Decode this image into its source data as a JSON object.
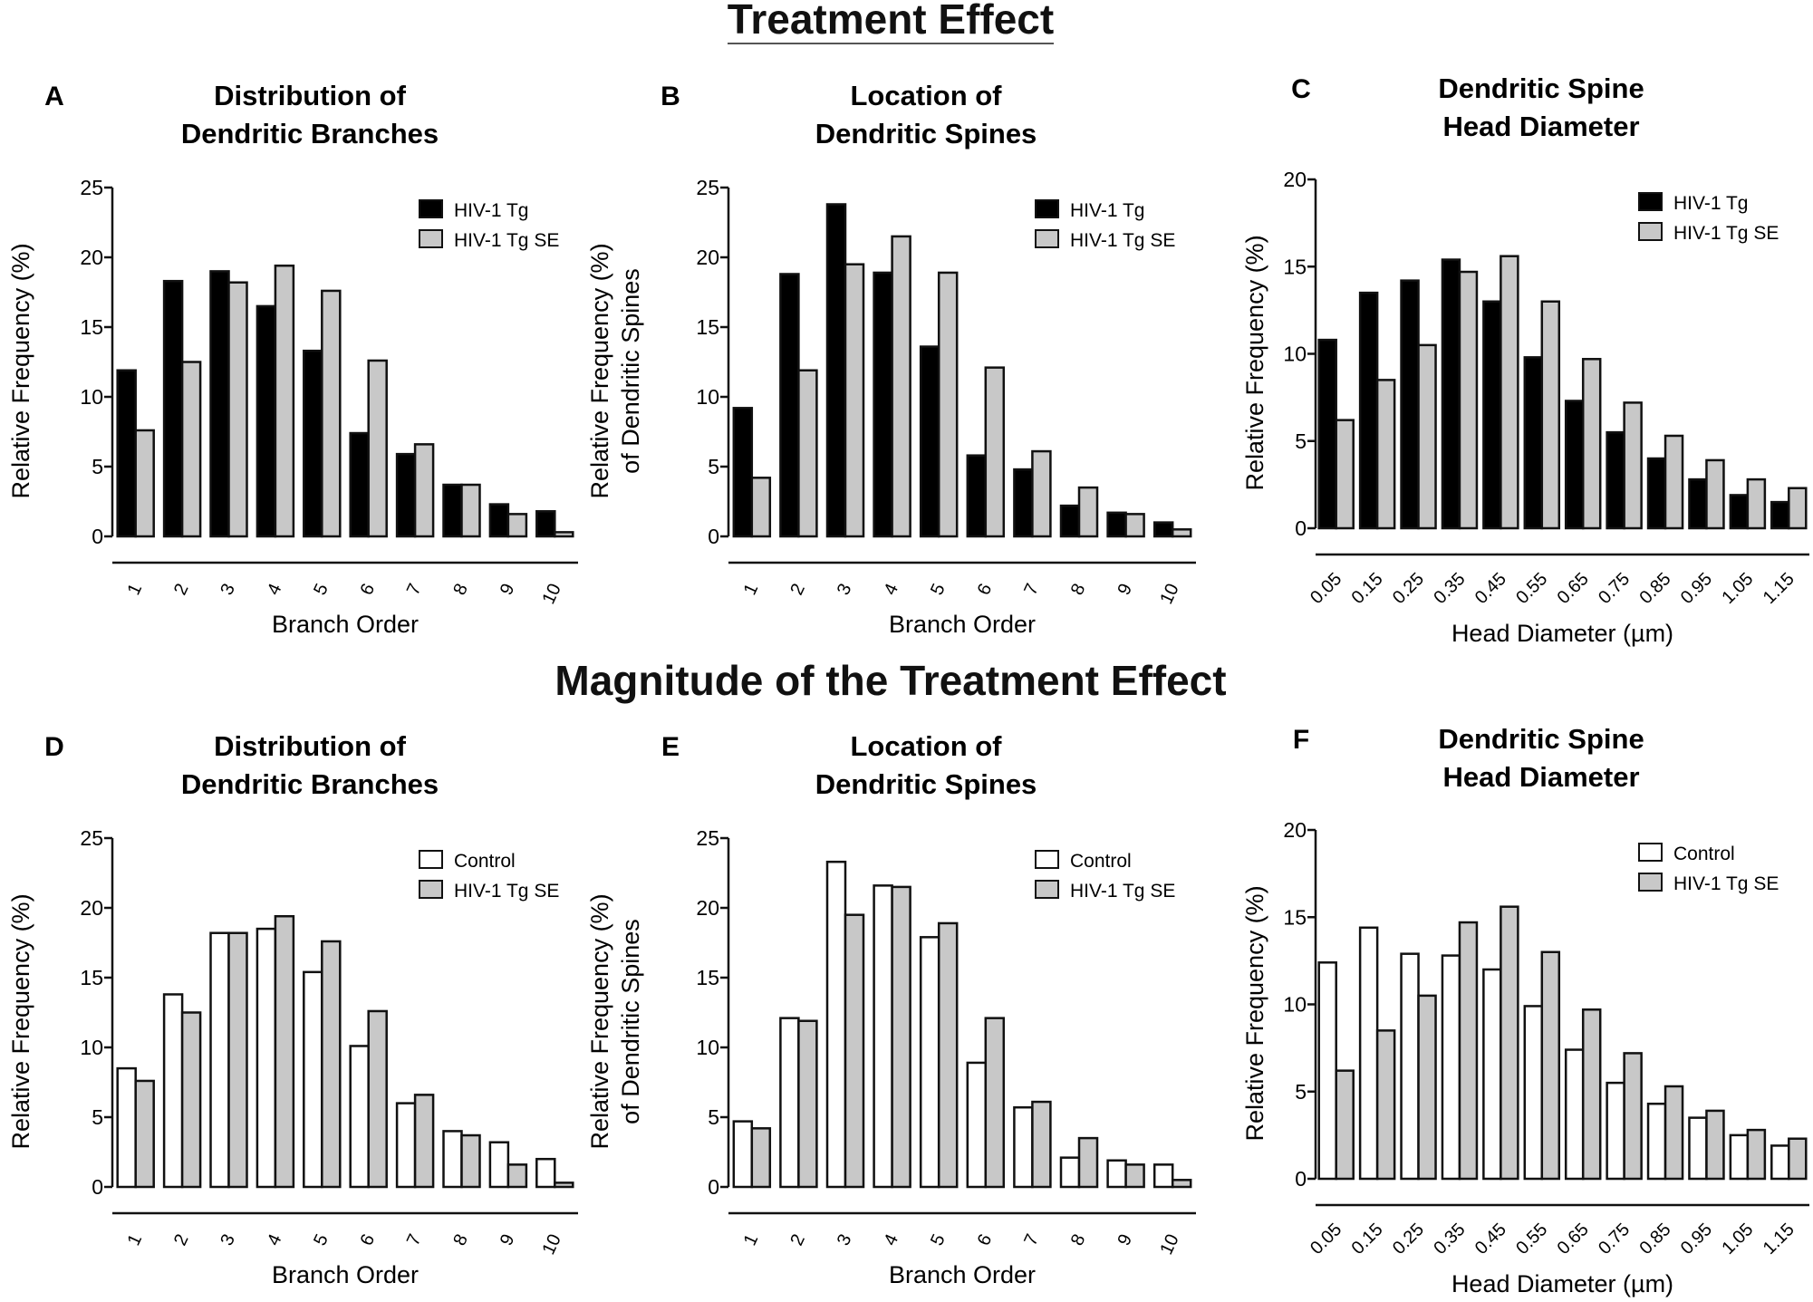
{
  "headings": {
    "top": "Treatment Effect",
    "bottom": "Magnitude of the  Treatment Effect"
  },
  "colors": {
    "black_bar": "#000000",
    "gray_bar": "#c8c8c8",
    "white_bar": "#ffffff",
    "outline": "#111111"
  },
  "chart_data": [
    {
      "panel": "A",
      "type": "bar",
      "title": [
        "Distribution of",
        "Dendritic  Branches"
      ],
      "xlabel": "Branch  Order",
      "ylabel": [
        "Relative  Frequency (%)"
      ],
      "categories": [
        "1",
        "2",
        "3",
        "4",
        "5",
        "6",
        "7",
        "8",
        "9",
        "10"
      ],
      "ylim": [
        0,
        25
      ],
      "yticks": [
        "0",
        "5",
        "10",
        "15",
        "20",
        "25"
      ],
      "legend": "top-right",
      "series": [
        {
          "name": "HIV-1 Tg",
          "fill": "black",
          "values": [
            11.9,
            18.3,
            19.0,
            16.5,
            13.3,
            7.4,
            5.9,
            3.7,
            2.3,
            1.8
          ]
        },
        {
          "name": "HIV-1 Tg SE",
          "fill": "gray",
          "values": [
            7.6,
            12.5,
            18.2,
            19.4,
            17.6,
            12.6,
            6.6,
            3.7,
            1.6,
            0.3
          ]
        }
      ]
    },
    {
      "panel": "B",
      "type": "bar",
      "title": [
        "Location of",
        "Dendritic Spines"
      ],
      "xlabel": "Branch  Order",
      "ylabel": [
        "Relative  Frequency (%)",
        "of Dendritic  Spines"
      ],
      "categories": [
        "1",
        "2",
        "3",
        "4",
        "5",
        "6",
        "7",
        "8",
        "9",
        "10"
      ],
      "ylim": [
        0,
        25
      ],
      "yticks": [
        "0",
        "5",
        "10",
        "15",
        "20",
        "25"
      ],
      "legend": "top-right",
      "series": [
        {
          "name": "HIV-1 Tg",
          "fill": "black",
          "values": [
            9.2,
            18.8,
            23.8,
            18.9,
            13.6,
            5.8,
            4.8,
            2.2,
            1.7,
            1.0
          ]
        },
        {
          "name": "HIV-1 Tg SE",
          "fill": "gray",
          "values": [
            4.2,
            11.9,
            19.5,
            21.5,
            18.9,
            12.1,
            6.1,
            3.5,
            1.6,
            0.5
          ]
        }
      ]
    },
    {
      "panel": "C",
      "type": "bar",
      "title": [
        "Dendritic Spine",
        "Head  Diameter"
      ],
      "xlabel": "Head Diameter (µm)",
      "ylabel": [
        "Relative  Frequency (%)"
      ],
      "categories": [
        "0.05",
        "0.15",
        "0.25",
        "0.35",
        "0.45",
        "0.55",
        "0.65",
        "0.75",
        "0.85",
        "0.95",
        "1.05",
        "1.15"
      ],
      "ylim": [
        0,
        20
      ],
      "yticks": [
        "0",
        "5",
        "10",
        "15",
        "20"
      ],
      "legend": "top-right",
      "series": [
        {
          "name": "HIV-1 Tg",
          "fill": "black",
          "values": [
            10.8,
            13.5,
            14.2,
            15.4,
            13.0,
            9.8,
            7.3,
            5.5,
            4.0,
            2.8,
            1.9,
            1.5
          ]
        },
        {
          "name": "HIV-1 Tg SE",
          "fill": "gray",
          "values": [
            6.2,
            8.5,
            10.5,
            14.7,
            15.6,
            13.0,
            9.7,
            7.2,
            5.3,
            3.9,
            2.8,
            2.3
          ]
        }
      ]
    },
    {
      "panel": "D",
      "type": "bar",
      "title": [
        "Distribution of",
        "Dendritic  Branches"
      ],
      "xlabel": "Branch  Order",
      "ylabel": [
        "Relative  Frequency (%)"
      ],
      "categories": [
        "1",
        "2",
        "3",
        "4",
        "5",
        "6",
        "7",
        "8",
        "9",
        "10"
      ],
      "ylim": [
        0,
        25
      ],
      "yticks": [
        "0",
        "5",
        "10",
        "15",
        "20",
        "25"
      ],
      "legend": "top-right",
      "series": [
        {
          "name": "Control",
          "fill": "white",
          "values": [
            8.5,
            13.8,
            18.2,
            18.5,
            15.4,
            10.1,
            6.0,
            4.0,
            3.2,
            2.0
          ]
        },
        {
          "name": "HIV-1 Tg SE",
          "fill": "gray",
          "values": [
            7.6,
            12.5,
            18.2,
            19.4,
            17.6,
            12.6,
            6.6,
            3.7,
            1.6,
            0.3
          ]
        }
      ]
    },
    {
      "panel": "E",
      "type": "bar",
      "title": [
        "Location of",
        "Dendritic Spines"
      ],
      "xlabel": "Branch  Order",
      "ylabel": [
        "Relative  Frequency (%)",
        "of Dendritic  Spines"
      ],
      "categories": [
        "1",
        "2",
        "3",
        "4",
        "5",
        "6",
        "7",
        "8",
        "9",
        "10"
      ],
      "ylim": [
        0,
        25
      ],
      "yticks": [
        "0",
        "5",
        "10",
        "15",
        "20",
        "25"
      ],
      "legend": "top-right",
      "series": [
        {
          "name": "Control",
          "fill": "white",
          "values": [
            4.7,
            12.1,
            23.3,
            21.6,
            17.9,
            8.9,
            5.7,
            2.1,
            1.9,
            1.6
          ]
        },
        {
          "name": "HIV-1 Tg SE",
          "fill": "gray",
          "values": [
            4.2,
            11.9,
            19.5,
            21.5,
            18.9,
            12.1,
            6.1,
            3.5,
            1.6,
            0.5
          ]
        }
      ]
    },
    {
      "panel": "F",
      "type": "bar",
      "title": [
        "Dendritic Spine",
        "Head  Diameter"
      ],
      "xlabel": "Head Diameter (µm)",
      "ylabel": [
        "Relative  Frequency (%)"
      ],
      "categories": [
        "0.05",
        "0.15",
        "0.25",
        "0.35",
        "0.45",
        "0.55",
        "0.65",
        "0.75",
        "0.85",
        "0.95",
        "1.05",
        "1.15"
      ],
      "ylim": [
        0,
        20
      ],
      "yticks": [
        "0",
        "5",
        "10",
        "15",
        "20"
      ],
      "legend": "top-right",
      "series": [
        {
          "name": "Control",
          "fill": "white",
          "values": [
            12.4,
            14.4,
            12.9,
            12.8,
            12.0,
            9.9,
            7.4,
            5.5,
            4.3,
            3.5,
            2.5,
            1.9
          ]
        },
        {
          "name": "HIV-1 Tg SE",
          "fill": "gray",
          "values": [
            6.2,
            8.5,
            10.5,
            14.7,
            15.6,
            13.0,
            9.7,
            7.2,
            5.3,
            3.9,
            2.8,
            2.3
          ]
        }
      ]
    }
  ]
}
